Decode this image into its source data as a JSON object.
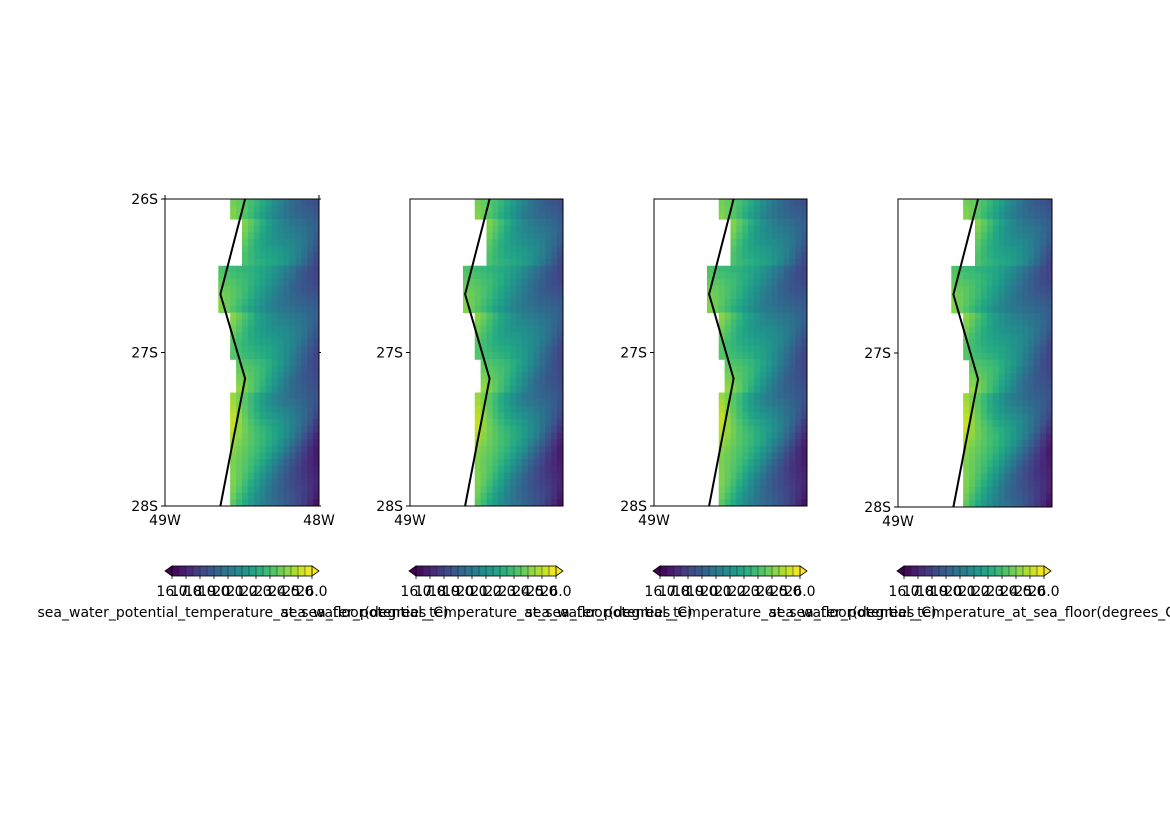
{
  "chart_data": [
    {
      "type": "heatmap",
      "map_kind": "filled-contour",
      "extent": {
        "lon": [
          -49.0,
          -48.0
        ],
        "lat": [
          -28.0,
          -26.0
        ]
      },
      "y_ticks": [
        {
          "lat": -26,
          "label": "26S"
        },
        {
          "lat": -27,
          "label": "27S"
        },
        {
          "lat": -28,
          "label": "28S"
        }
      ],
      "x_ticks": [
        {
          "lon": -49,
          "label": "49W"
        },
        {
          "lon": -48,
          "label": "48W"
        }
      ],
      "coastline_lon_lat": [
        [
          -48.48,
          -26.0
        ],
        [
          -48.64,
          -26.62
        ],
        [
          -48.48,
          -27.17
        ],
        [
          -48.64,
          -28.0
        ]
      ],
      "colorbar": {
        "label": "sea_water_potential_temperature_at_sea_floor(degrees_C)",
        "ticks": [
          "16.0",
          "17.0",
          "18.0",
          "19.0",
          "20.0",
          "21.0",
          "22.0",
          "23.0",
          "24.0",
          "25.0",
          "26.0"
        ],
        "extend": "both",
        "colormap": "viridis"
      }
    },
    {
      "type": "heatmap",
      "map_kind": "filled-contour",
      "extent": {
        "lon": [
          -49.0,
          -48.0
        ],
        "lat": [
          -28.0,
          -26.0
        ]
      },
      "y_ticks": [
        {
          "lat": -27,
          "label": "27S"
        },
        {
          "lat": -28,
          "label": "28S"
        }
      ],
      "x_ticks": [
        {
          "lon": -49,
          "label": "49W"
        }
      ],
      "coastline_lon_lat": [
        [
          -48.48,
          -26.0
        ],
        [
          -48.64,
          -26.62
        ],
        [
          -48.48,
          -27.17
        ],
        [
          -48.64,
          -28.0
        ]
      ],
      "colorbar": {
        "label": "sea_water_potential_temperature_at_sea_floor(degrees_C)",
        "ticks": [
          "16.0",
          "17.0",
          "18.0",
          "19.0",
          "20.0",
          "21.0",
          "22.0",
          "23.0",
          "24.0",
          "25.0",
          "26.0"
        ],
        "extend": "both",
        "colormap": "viridis"
      }
    },
    {
      "type": "heatmap",
      "map_kind": "filled-contour",
      "extent": {
        "lon": [
          -49.0,
          -48.0
        ],
        "lat": [
          -28.0,
          -26.0
        ]
      },
      "y_ticks": [
        {
          "lat": -27,
          "label": "27S"
        },
        {
          "lat": -28,
          "label": "28S"
        }
      ],
      "x_ticks": [
        {
          "lon": -49,
          "label": "49W"
        }
      ],
      "coastline_lon_lat": [
        [
          -48.48,
          -26.0
        ],
        [
          -48.64,
          -26.62
        ],
        [
          -48.48,
          -27.17
        ],
        [
          -48.64,
          -28.0
        ]
      ],
      "colorbar": {
        "label": "sea_water_potential_temperature_at_sea_floor(degrees_C)",
        "ticks": [
          "16.0",
          "17.0",
          "18.0",
          "19.0",
          "20.0",
          "21.0",
          "22.0",
          "23.0",
          "24.0",
          "25.0",
          "26.0"
        ],
        "extend": "both",
        "colormap": "viridis"
      }
    },
    {
      "type": "heatmap",
      "map_kind": "filled-contour",
      "extent": {
        "lon": [
          -49.0,
          -48.0
        ],
        "lat": [
          -28.0,
          -26.0
        ]
      },
      "y_ticks": [
        {
          "lat": -27,
          "label": "27S"
        },
        {
          "lat": -28,
          "label": "28S"
        }
      ],
      "x_ticks": [
        {
          "lon": -49,
          "label": "49W"
        }
      ],
      "coastline_lon_lat": [
        [
          -48.48,
          -26.0
        ],
        [
          -48.64,
          -26.62
        ],
        [
          -48.48,
          -27.17
        ],
        [
          -48.64,
          -28.0
        ]
      ],
      "colorbar": {
        "label": "sea_water_potential_temperature_at_sea_floor(degrees_C)",
        "ticks": [
          "16.0",
          "17.0",
          "18.0",
          "19.0",
          "20.0",
          "21.0",
          "22.0",
          "23.0",
          "24.0",
          "25.0",
          "26.0"
        ],
        "extend": "both",
        "colormap": "viridis"
      }
    }
  ]
}
